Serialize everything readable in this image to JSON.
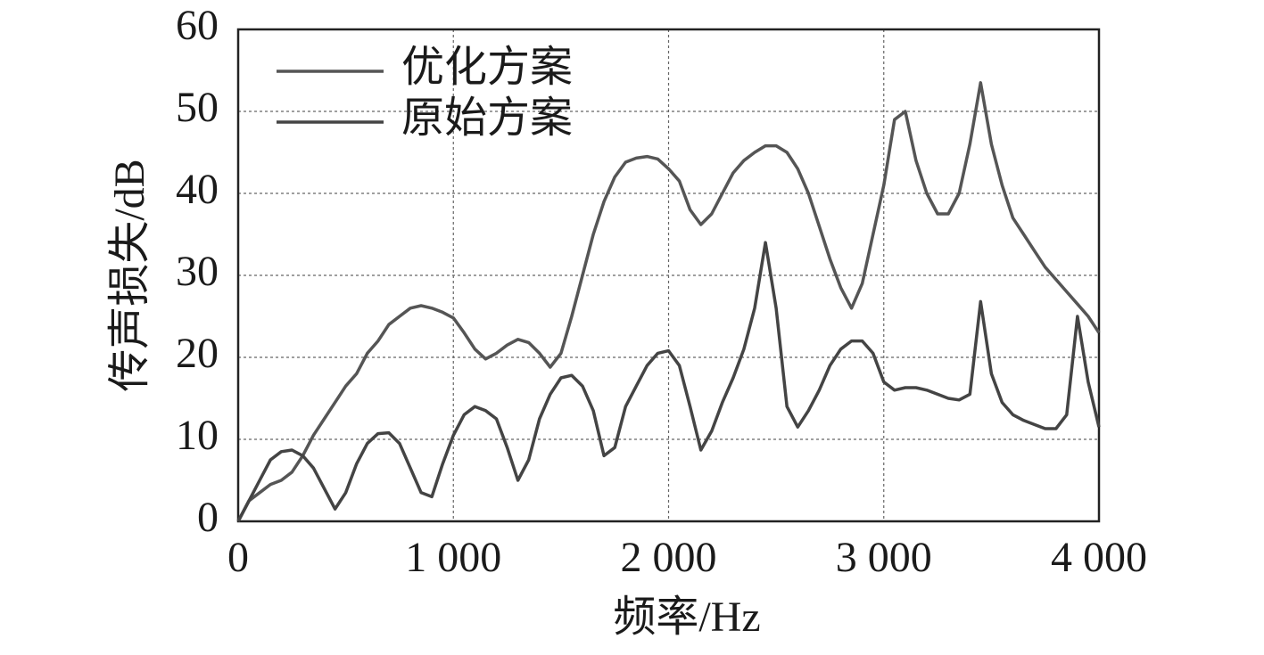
{
  "chart_data": {
    "type": "line",
    "xlabel": "频率/Hz",
    "ylabel": "传声损失/dB",
    "x": [
      0,
      50,
      100,
      150,
      200,
      250,
      300,
      350,
      400,
      450,
      500,
      550,
      600,
      650,
      700,
      750,
      800,
      850,
      900,
      950,
      1000,
      1050,
      1100,
      1150,
      1200,
      1250,
      1300,
      1350,
      1400,
      1450,
      1500,
      1550,
      1600,
      1650,
      1700,
      1750,
      1800,
      1850,
      1900,
      1950,
      2000,
      2050,
      2100,
      2150,
      2200,
      2250,
      2300,
      2350,
      2400,
      2450,
      2500,
      2550,
      2600,
      2650,
      2700,
      2750,
      2800,
      2850,
      2900,
      2950,
      3000,
      3050,
      3100,
      3150,
      3200,
      3250,
      3300,
      3350,
      3400,
      3450,
      3500,
      3550,
      3600,
      3650,
      3700,
      3750,
      3800,
      3850,
      3900,
      3950,
      4000
    ],
    "series": [
      {
        "name": "优化方案",
        "color": "#555555",
        "values": [
          0,
          2.5,
          3.5,
          4.5,
          5,
          6,
          8,
          10.5,
          12.5,
          14.5,
          16.5,
          18,
          20.5,
          22,
          24,
          25,
          26,
          26.3,
          26,
          25.5,
          24.8,
          23,
          21,
          19.8,
          20.5,
          21.5,
          22.2,
          21.8,
          20.5,
          18.8,
          20.5,
          25,
          30,
          35,
          39,
          42,
          43.8,
          44.3,
          44.5,
          44.2,
          43,
          41.5,
          38,
          36.2,
          37.5,
          40,
          42.5,
          44,
          45,
          45.8,
          45.8,
          45,
          43,
          40,
          36,
          32,
          28.5,
          26,
          29,
          35,
          41,
          49,
          50,
          44,
          40,
          37.5,
          37.5,
          40,
          46,
          53.5,
          46,
          41,
          37,
          35,
          33,
          31,
          29.5,
          28,
          26.5,
          25,
          23
        ]
      },
      {
        "name": "原始方案",
        "color": "#444444",
        "values": [
          0,
          2.5,
          5,
          7.5,
          8.5,
          8.7,
          8,
          6.5,
          4,
          1.5,
          3.5,
          7,
          9.5,
          10.7,
          10.8,
          9.5,
          6.5,
          3.5,
          3,
          7,
          10.5,
          13,
          14,
          13.5,
          12.5,
          9,
          5,
          7.5,
          12.5,
          15.5,
          17.5,
          17.8,
          16.5,
          13.5,
          8,
          9,
          14,
          16.5,
          19,
          20.5,
          20.8,
          19,
          14,
          8.7,
          11,
          14.5,
          17.5,
          21,
          26,
          34,
          26,
          14,
          11.5,
          13.5,
          16,
          19,
          21,
          22,
          22,
          20.5,
          17,
          16,
          16.3,
          16.3,
          16,
          15.5,
          15,
          14.8,
          15.5,
          26.8,
          18,
          14.5,
          13,
          12.3,
          11.8,
          11.3,
          11.3,
          13,
          25,
          17,
          11.5
        ]
      }
    ],
    "xlim": [
      0,
      4000
    ],
    "xticks": [
      0,
      {
        "value": 1000,
        "label": "1 000"
      },
      {
        "value": 2000,
        "label": "2 000"
      },
      {
        "value": 3000,
        "label": "3 000"
      },
      {
        "value": 4000,
        "label": "4 000"
      }
    ],
    "ylim": [
      0,
      60
    ],
    "yticks": [
      0,
      10,
      20,
      30,
      40,
      50,
      60
    ],
    "grid": true
  }
}
